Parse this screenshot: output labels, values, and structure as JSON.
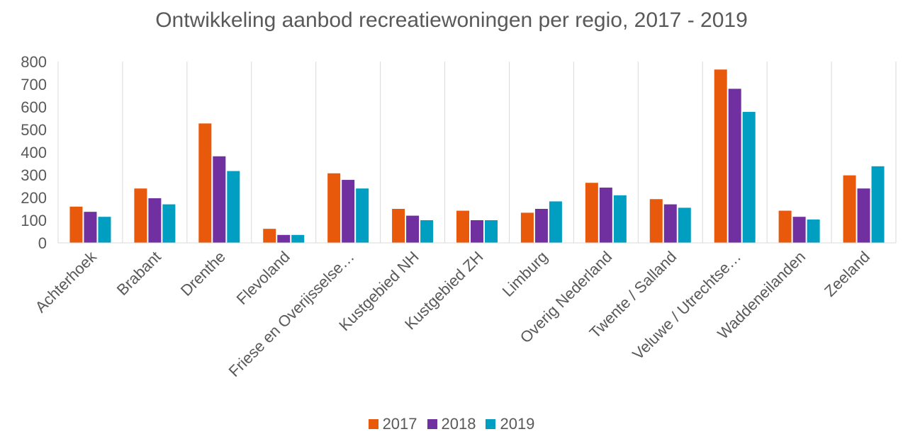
{
  "chart_data": {
    "type": "bar",
    "title": "Ontwikkeling aanbod recreatiewoningen per regio, 2017 - 2019",
    "xlabel": "",
    "ylabel": "",
    "ylim": [
      0,
      800
    ],
    "yticks": [
      "0",
      "100",
      "200",
      "300",
      "400",
      "500",
      "600",
      "700",
      "800"
    ],
    "grid": "vertical category separators",
    "legend_position": "bottom",
    "categories": [
      "Achterhoek",
      "Brabant",
      "Drenthe",
      "Flevoland",
      "Friese en Overijsselse…",
      "Kustgebied NH",
      "Kustgebied ZH",
      "Limburg",
      "Overig Nederland",
      "Twente / Salland",
      "Veluwe / Utrechtse…",
      "Waddeneilanden",
      "Zeeland"
    ],
    "series": [
      {
        "name": "2017",
        "color": "#e8590c",
        "values": [
          160,
          240,
          527,
          62,
          307,
          150,
          142,
          133,
          265,
          193,
          765,
          142,
          298
        ]
      },
      {
        "name": "2018",
        "color": "#7030a0",
        "values": [
          137,
          197,
          382,
          35,
          278,
          120,
          100,
          150,
          244,
          170,
          680,
          115,
          240
        ]
      },
      {
        "name": "2019",
        "color": "#009fc2",
        "values": [
          115,
          170,
          317,
          35,
          240,
          100,
          100,
          183,
          210,
          155,
          578,
          103,
          338
        ]
      }
    ]
  }
}
